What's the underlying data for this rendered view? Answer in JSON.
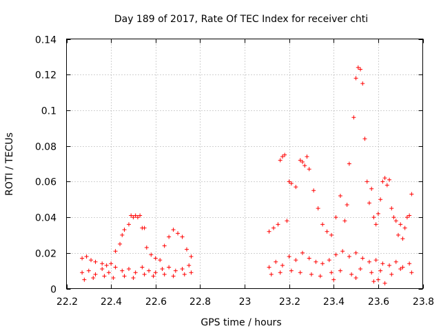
{
  "chart_data": {
    "type": "scatter",
    "title": "Day 189 of 2017, Rate Of TEC Index for receiver chti",
    "xlabel": "GPS time / hours",
    "ylabel": "ROTI / TECUs",
    "xlim": [
      22.2,
      23.8
    ],
    "ylim": [
      0,
      0.14
    ],
    "xticks": [
      "22.2",
      "22.4",
      "22.6",
      "22.8",
      "23",
      "23.2",
      "23.4",
      "23.6",
      "23.8"
    ],
    "yticks": [
      "0",
      "0.02",
      "0.04",
      "0.06",
      "0.08",
      "0.1",
      "0.12",
      "0.14"
    ],
    "grid": true,
    "marker": "+",
    "color": "#ff0000",
    "series": [
      {
        "name": "ROTI",
        "points": [
          [
            22.27,
            0.017
          ],
          [
            22.29,
            0.018
          ],
          [
            22.31,
            0.016
          ],
          [
            22.33,
            0.015
          ],
          [
            22.36,
            0.014
          ],
          [
            22.38,
            0.013
          ],
          [
            22.4,
            0.014
          ],
          [
            22.42,
            0.021
          ],
          [
            22.44,
            0.025
          ],
          [
            22.45,
            0.03
          ],
          [
            22.46,
            0.033
          ],
          [
            22.48,
            0.036
          ],
          [
            22.49,
            0.041
          ],
          [
            22.5,
            0.04
          ],
          [
            22.51,
            0.041
          ],
          [
            22.52,
            0.04
          ],
          [
            22.53,
            0.041
          ],
          [
            22.54,
            0.034
          ],
          [
            22.55,
            0.034
          ],
          [
            22.56,
            0.023
          ],
          [
            22.58,
            0.019
          ],
          [
            22.6,
            0.017
          ],
          [
            22.62,
            0.016
          ],
          [
            22.64,
            0.024
          ],
          [
            22.66,
            0.029
          ],
          [
            22.68,
            0.033
          ],
          [
            22.7,
            0.031
          ],
          [
            22.72,
            0.029
          ],
          [
            22.74,
            0.022
          ],
          [
            22.76,
            0.018
          ],
          [
            22.27,
            0.009
          ],
          [
            22.3,
            0.01
          ],
          [
            22.33,
            0.008
          ],
          [
            22.36,
            0.011
          ],
          [
            22.39,
            0.009
          ],
          [
            22.42,
            0.012
          ],
          [
            22.45,
            0.01
          ],
          [
            22.48,
            0.011
          ],
          [
            22.51,
            0.009
          ],
          [
            22.54,
            0.012
          ],
          [
            22.57,
            0.01
          ],
          [
            22.6,
            0.009
          ],
          [
            22.63,
            0.011
          ],
          [
            22.66,
            0.012
          ],
          [
            22.69,
            0.01
          ],
          [
            22.72,
            0.011
          ],
          [
            22.75,
            0.013
          ],
          [
            22.28,
            0.005
          ],
          [
            22.32,
            0.006
          ],
          [
            22.37,
            0.007
          ],
          [
            22.41,
            0.006
          ],
          [
            22.46,
            0.007
          ],
          [
            22.5,
            0.006
          ],
          [
            22.55,
            0.008
          ],
          [
            22.59,
            0.007
          ],
          [
            22.64,
            0.008
          ],
          [
            22.68,
            0.007
          ],
          [
            22.73,
            0.008
          ],
          [
            22.76,
            0.009
          ],
          [
            23.11,
            0.032
          ],
          [
            23.13,
            0.034
          ],
          [
            23.15,
            0.036
          ],
          [
            23.16,
            0.072
          ],
          [
            23.17,
            0.074
          ],
          [
            23.18,
            0.075
          ],
          [
            23.19,
            0.038
          ],
          [
            23.2,
            0.06
          ],
          [
            23.21,
            0.059
          ],
          [
            23.23,
            0.057
          ],
          [
            23.25,
            0.072
          ],
          [
            23.26,
            0.071
          ],
          [
            23.27,
            0.069
          ],
          [
            23.28,
            0.074
          ],
          [
            23.29,
            0.067
          ],
          [
            23.31,
            0.055
          ],
          [
            23.33,
            0.045
          ],
          [
            23.35,
            0.036
          ],
          [
            23.37,
            0.032
          ],
          [
            23.39,
            0.03
          ],
          [
            23.41,
            0.04
          ],
          [
            23.43,
            0.052
          ],
          [
            23.45,
            0.038
          ],
          [
            23.46,
            0.047
          ],
          [
            23.47,
            0.07
          ],
          [
            23.49,
            0.096
          ],
          [
            23.5,
            0.118
          ],
          [
            23.51,
            0.124
          ],
          [
            23.52,
            0.123
          ],
          [
            23.53,
            0.115
          ],
          [
            23.54,
            0.084
          ],
          [
            23.55,
            0.06
          ],
          [
            23.56,
            0.048
          ],
          [
            23.57,
            0.056
          ],
          [
            23.58,
            0.04
          ],
          [
            23.59,
            0.036
          ],
          [
            23.6,
            0.042
          ],
          [
            23.61,
            0.05
          ],
          [
            23.62,
            0.06
          ],
          [
            23.63,
            0.062
          ],
          [
            23.64,
            0.058
          ],
          [
            23.65,
            0.061
          ],
          [
            23.66,
            0.045
          ],
          [
            23.67,
            0.04
          ],
          [
            23.68,
            0.038
          ],
          [
            23.69,
            0.03
          ],
          [
            23.7,
            0.036
          ],
          [
            23.71,
            0.028
          ],
          [
            23.72,
            0.034
          ],
          [
            23.73,
            0.04
          ],
          [
            23.74,
            0.041
          ],
          [
            23.75,
            0.053
          ],
          [
            23.11,
            0.012
          ],
          [
            23.14,
            0.015
          ],
          [
            23.17,
            0.013
          ],
          [
            23.2,
            0.018
          ],
          [
            23.23,
            0.016
          ],
          [
            23.26,
            0.02
          ],
          [
            23.29,
            0.017
          ],
          [
            23.32,
            0.015
          ],
          [
            23.35,
            0.014
          ],
          [
            23.38,
            0.016
          ],
          [
            23.41,
            0.019
          ],
          [
            23.44,
            0.021
          ],
          [
            23.47,
            0.018
          ],
          [
            23.5,
            0.02
          ],
          [
            23.53,
            0.017
          ],
          [
            23.56,
            0.015
          ],
          [
            23.59,
            0.016
          ],
          [
            23.62,
            0.014
          ],
          [
            23.65,
            0.013
          ],
          [
            23.68,
            0.015
          ],
          [
            23.71,
            0.012
          ],
          [
            23.74,
            0.014
          ],
          [
            23.12,
            0.008
          ],
          [
            23.16,
            0.009
          ],
          [
            23.21,
            0.01
          ],
          [
            23.25,
            0.009
          ],
          [
            23.3,
            0.008
          ],
          [
            23.34,
            0.007
          ],
          [
            23.39,
            0.009
          ],
          [
            23.43,
            0.01
          ],
          [
            23.48,
            0.008
          ],
          [
            23.52,
            0.011
          ],
          [
            23.57,
            0.009
          ],
          [
            23.61,
            0.01
          ],
          [
            23.66,
            0.008
          ],
          [
            23.7,
            0.011
          ],
          [
            23.75,
            0.009
          ],
          [
            23.4,
            0.005
          ],
          [
            23.5,
            0.006
          ],
          [
            23.58,
            0.004
          ],
          [
            23.6,
            0.005
          ],
          [
            23.63,
            0.003
          ]
        ]
      }
    ]
  }
}
